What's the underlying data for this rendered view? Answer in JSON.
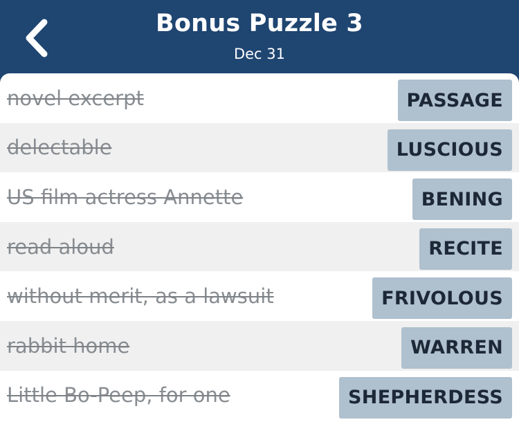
{
  "header": {
    "title": "Bonus Puzzle 3",
    "subtitle": "Dec 31",
    "back_icon": "chevron-left-icon"
  },
  "colors": {
    "header_bg": "#1f4571",
    "answer_bg": "#afc0ce",
    "answer_text": "#1d2836",
    "clue_text": "#888d92",
    "alt_row": "#f0f0f0"
  },
  "clues": [
    {
      "clue": "novel excerpt",
      "answer": "PASSAGE",
      "solved": true
    },
    {
      "clue": "delectable",
      "answer": "LUSCIOUS",
      "solved": true
    },
    {
      "clue": "US film actress Annette",
      "answer": "BENING",
      "solved": true
    },
    {
      "clue": "read aloud",
      "answer": "RECITE",
      "solved": true
    },
    {
      "clue": "without merit, as a lawsuit",
      "answer": "FRIVOLOUS",
      "solved": true
    },
    {
      "clue": "rabbit home",
      "answer": "WARREN",
      "solved": true
    },
    {
      "clue": "Little Bo-Peep, for one",
      "answer": "SHEPHERDESS",
      "solved": true
    }
  ]
}
